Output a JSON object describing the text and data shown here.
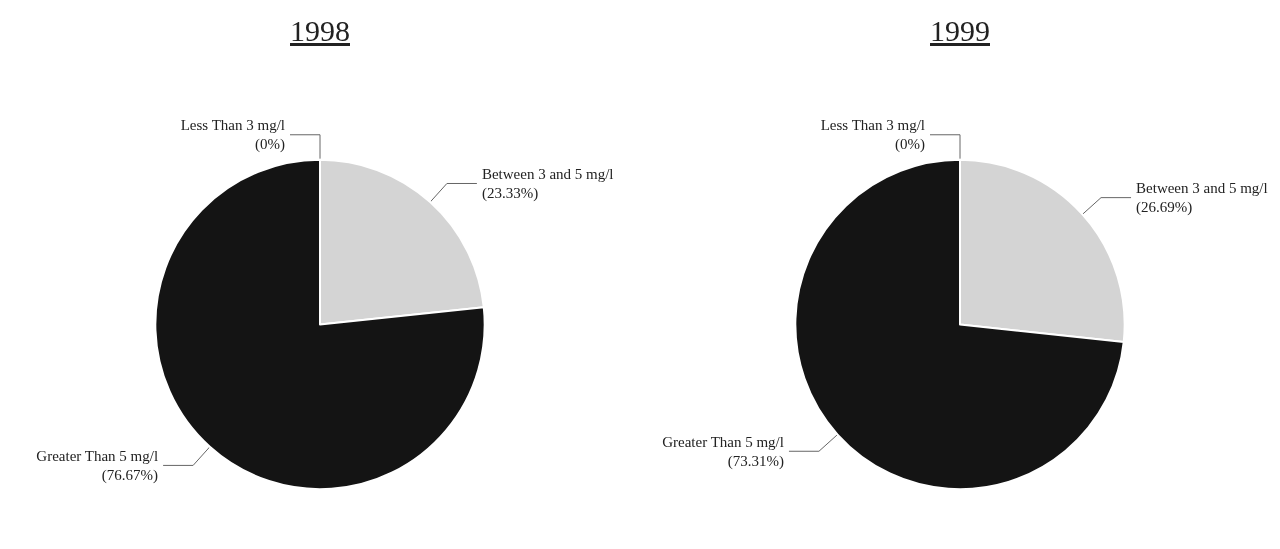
{
  "chart_data": [
    {
      "type": "pie",
      "title": "1998",
      "categories": [
        "Less Than 3 mg/l",
        "Between 3 and 5 mg/l",
        "Greater Than 5 mg/l"
      ],
      "values": [
        0,
        23.33,
        76.67
      ],
      "colors": [
        "#ffffff",
        "#d4d4d4",
        "#141414"
      ],
      "value_labels": [
        "(0%)",
        "(23.33%)",
        "(76.67%)"
      ]
    },
    {
      "type": "pie",
      "title": "1999",
      "categories": [
        "Less Than 3 mg/l",
        "Between 3 and 5 mg/l",
        "Greater Than 5 mg/l"
      ],
      "values": [
        0,
        26.69,
        73.31
      ],
      "colors": [
        "#ffffff",
        "#d4d4d4",
        "#141414"
      ],
      "value_labels": [
        "(0%)",
        "(26.69%)",
        "(73.31%)"
      ]
    }
  ]
}
